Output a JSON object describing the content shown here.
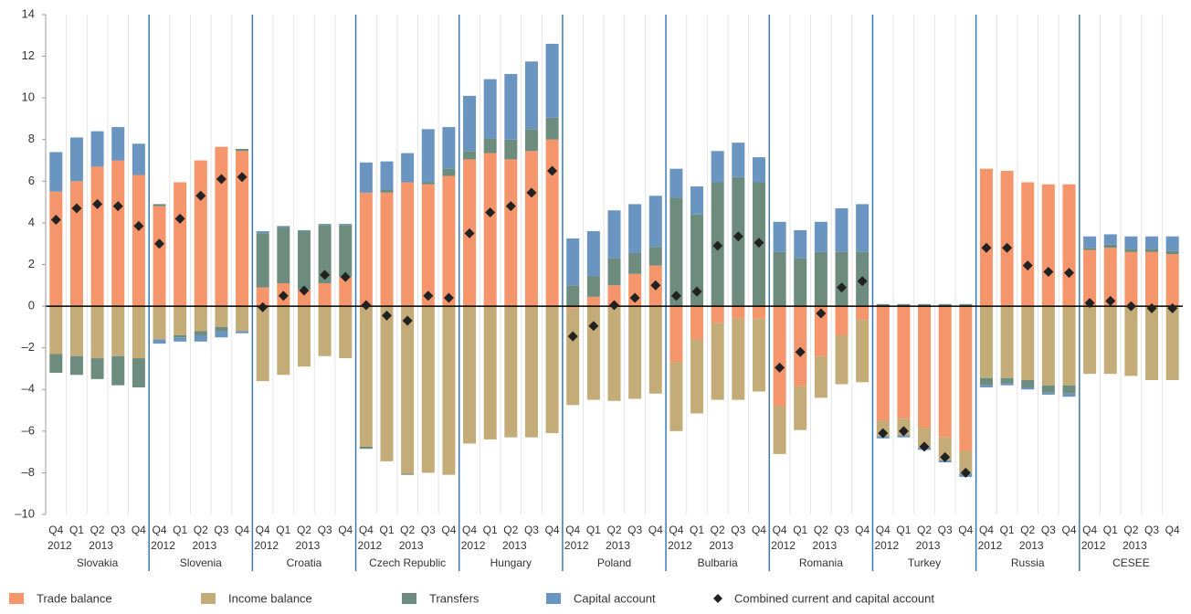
{
  "chart_data": {
    "type": "stacked_bar",
    "groups": [
      "Slovakia",
      "Slovenia",
      "Croatia",
      "Czech Republic",
      "Hungary",
      "Poland",
      "Bulbaria",
      "Romania",
      "Turkey",
      "Russia",
      "CESEE"
    ],
    "quarters": [
      "Q4",
      "Q1",
      "Q2",
      "Q3",
      "Q4"
    ],
    "years": [
      "2012",
      null,
      "2013",
      null,
      null
    ],
    "ylim": [
      -10,
      14
    ],
    "yticks": [
      {
        "value": -10,
        "label": "–10"
      },
      {
        "value": -8,
        "label": "–8"
      },
      {
        "value": -6,
        "label": "–6"
      },
      {
        "value": -4,
        "label": "–4"
      },
      {
        "value": -2,
        "label": "–2"
      },
      0,
      2,
      4,
      6,
      8,
      10,
      12,
      14
    ],
    "series": [
      {
        "name": "Trade balance",
        "color": "#f4956b",
        "values": [
          5.5,
          6.0,
          6.7,
          7.0,
          6.3,
          4.8,
          5.95,
          7.0,
          7.65,
          7.45,
          0.9,
          1.1,
          0.8,
          1.1,
          1.4,
          5.45,
          5.45,
          5.95,
          5.85,
          6.25,
          7.05,
          7.35,
          7.05,
          7.45,
          8.0,
          -0.1,
          0.45,
          1.0,
          1.55,
          1.95,
          -2.7,
          -1.6,
          -0.8,
          -0.6,
          -0.6,
          -4.8,
          -3.85,
          -2.4,
          -1.4,
          -0.65,
          -5.5,
          -5.4,
          -5.85,
          -6.3,
          -6.95,
          6.6,
          6.5,
          5.95,
          5.85,
          5.85,
          2.7,
          2.8,
          2.6,
          2.6,
          2.5
        ]
      },
      {
        "name": "Income balance",
        "color": "#c4ac78",
        "values": [
          -2.3,
          -2.4,
          -2.5,
          -2.4,
          -2.5,
          -1.6,
          -1.4,
          -1.2,
          -1.0,
          -1.2,
          -3.6,
          -3.3,
          -2.9,
          -2.4,
          -2.5,
          -6.75,
          -7.45,
          -8.05,
          -8.0,
          -8.1,
          -6.6,
          -6.4,
          -6.3,
          -6.3,
          -6.1,
          -4.65,
          -4.5,
          -4.55,
          -4.45,
          -4.2,
          -3.3,
          -3.55,
          -3.7,
          -3.9,
          -3.5,
          -2.3,
          -2.1,
          -2.0,
          -2.35,
          -3.0,
          -0.75,
          -0.8,
          -0.95,
          -1.1,
          -1.1,
          -3.45,
          -3.45,
          -3.55,
          -3.8,
          -3.8,
          -3.25,
          -3.25,
          -3.35,
          -3.55,
          -3.55
        ]
      },
      {
        "name": "Transfers",
        "color": "#6e8c7e",
        "values": [
          -0.9,
          -0.9,
          -1.0,
          -1.4,
          -1.4,
          0.1,
          -0.1,
          -0.2,
          -0.2,
          0.1,
          2.6,
          2.7,
          2.8,
          2.8,
          2.5,
          -0.1,
          0.15,
          -0.05,
          0.1,
          0.35,
          0.4,
          0.7,
          0.95,
          1.05,
          1.05,
          1.0,
          1.0,
          1.3,
          1.0,
          0.9,
          5.2,
          4.4,
          5.95,
          6.2,
          5.95,
          2.6,
          2.3,
          2.6,
          2.6,
          2.6,
          0.1,
          0.1,
          0.1,
          0.1,
          0.1,
          -0.35,
          -0.25,
          -0.35,
          -0.35,
          -0.4,
          0.1,
          0.15,
          0.15,
          0.15,
          0.15
        ]
      },
      {
        "name": "Capital account",
        "color": "#6a95c0",
        "values": [
          1.9,
          2.1,
          1.7,
          1.6,
          1.5,
          -0.2,
          -0.2,
          -0.3,
          -0.3,
          -0.1,
          0.1,
          0.05,
          0.05,
          0.05,
          0.05,
          1.45,
          1.35,
          1.4,
          2.55,
          2.0,
          2.65,
          2.85,
          3.15,
          3.25,
          3.55,
          2.25,
          2.15,
          2.3,
          2.35,
          2.45,
          1.4,
          1.35,
          1.5,
          1.65,
          1.2,
          1.45,
          1.35,
          1.45,
          2.1,
          2.3,
          -0.1,
          -0.1,
          -0.1,
          -0.1,
          -0.15,
          -0.1,
          -0.1,
          -0.1,
          -0.1,
          -0.15,
          0.55,
          0.5,
          0.6,
          0.6,
          0.7
        ]
      }
    ],
    "combined": {
      "name": "Combined current and capital account",
      "color": "#222222",
      "values": [
        4.15,
        4.7,
        4.9,
        4.8,
        3.85,
        3.0,
        4.2,
        5.3,
        6.1,
        6.2,
        -0.05,
        0.5,
        0.75,
        1.5,
        1.4,
        0.05,
        -0.45,
        -0.7,
        0.5,
        0.4,
        3.5,
        4.5,
        4.8,
        5.45,
        6.5,
        -1.45,
        -0.95,
        0.05,
        0.4,
        1.0,
        0.5,
        0.7,
        2.9,
        3.35,
        3.05,
        -2.95,
        -2.2,
        -0.35,
        0.9,
        1.2,
        -6.1,
        -6.0,
        -6.75,
        -7.25,
        -8.0,
        2.8,
        2.8,
        1.95,
        1.65,
        1.6,
        0.15,
        0.25,
        0.0,
        -0.1,
        -0.1
      ]
    }
  }
}
